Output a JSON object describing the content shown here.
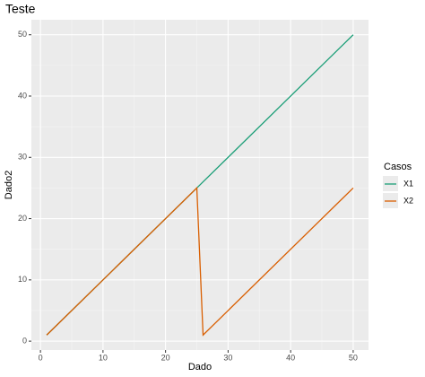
{
  "chart_data": {
    "type": "line",
    "title": "Teste",
    "x_label": "Dado",
    "y_label": "Dado2",
    "x": [
      1,
      25,
      26,
      50
    ],
    "series": [
      {
        "name": "X1",
        "color": "#1b9e77",
        "values": [
          1,
          25,
          26,
          50
        ]
      },
      {
        "name": "X2",
        "color": "#d95f02",
        "values": [
          1,
          25,
          1,
          25
        ]
      }
    ],
    "xlim": [
      -1.45,
      52.45
    ],
    "ylim": [
      -1.45,
      52.45
    ],
    "xticks": [
      0,
      10,
      20,
      30,
      40,
      50
    ],
    "yticks": [
      0,
      10,
      20,
      30,
      40,
      50
    ],
    "xminor": [
      5,
      15,
      25,
      35,
      45
    ],
    "yminor": [
      5,
      15,
      25,
      35,
      45
    ],
    "legend_title": "Casos",
    "legend": "right",
    "grid": true
  }
}
